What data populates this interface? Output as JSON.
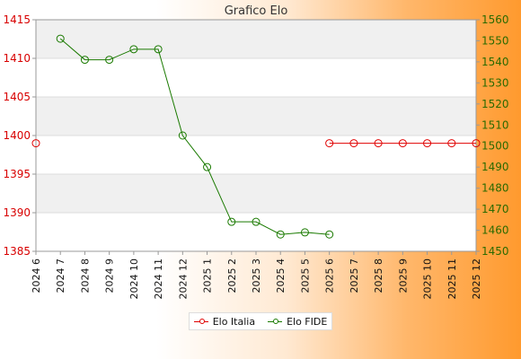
{
  "chart_data": {
    "type": "line",
    "title": "Grafico Elo",
    "categories": [
      "2024 6",
      "2024 7",
      "2024 8",
      "2024 9",
      "2024 10",
      "2024 11",
      "2024 12",
      "2025 1",
      "2025 2",
      "2025 3",
      "2025 4",
      "2025 5",
      "2025 6",
      "2025 7",
      "2025 8",
      "2025 9",
      "2025 10",
      "2025 11",
      "2025 12"
    ],
    "left_axis": {
      "ylim": [
        1385,
        1415
      ],
      "ticks": [
        1385,
        1390,
        1395,
        1400,
        1405,
        1410,
        1415
      ],
      "color": "#d80000"
    },
    "right_axis": {
      "ylim": [
        1450,
        1560
      ],
      "ticks": [
        1450,
        1460,
        1470,
        1480,
        1490,
        1500,
        1510,
        1520,
        1530,
        1540,
        1550,
        1560
      ],
      "color": "#2a6a00"
    },
    "series": [
      {
        "name": "Elo Italia",
        "axis": "left",
        "color": "#e00000",
        "values": [
          1399,
          null,
          null,
          null,
          null,
          null,
          null,
          null,
          null,
          null,
          null,
          null,
          1399,
          1399,
          1399,
          1399,
          1399,
          1399,
          1399
        ]
      },
      {
        "name": "Elo FIDE",
        "axis": "right",
        "color": "#1a7a00",
        "values": [
          null,
          1551,
          1541,
          1541,
          1546,
          1546,
          1505,
          1490,
          1464,
          1464,
          1458,
          1459,
          1458,
          null,
          null,
          null,
          null,
          null,
          null
        ]
      }
    ],
    "grid": true,
    "legend_position": "bottom"
  }
}
